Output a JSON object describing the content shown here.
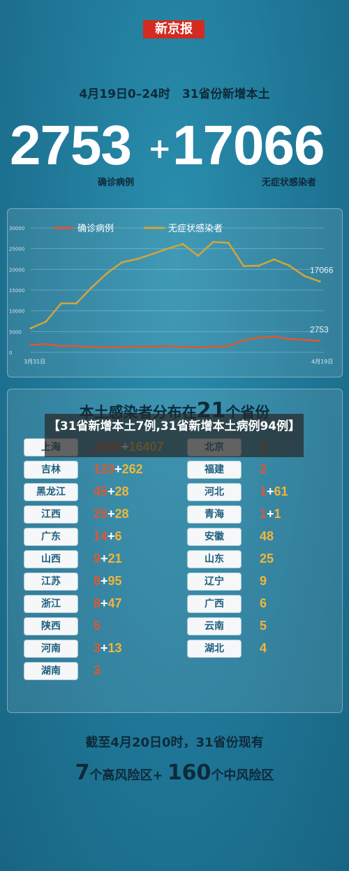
{
  "header": {
    "brand": "新京报",
    "date_line": "4月19日0–24时　31省份新增本土",
    "confirmed": "2753",
    "plus": "+",
    "asymptomatic": "17066",
    "confirmed_label": "确诊病例",
    "asymptomatic_label": "无症状感染者"
  },
  "chart_data": {
    "type": "line",
    "x_start_label": "3月31日",
    "x_end_label": "4月19日",
    "ylim": [
      0,
      30000
    ],
    "y_ticks": [
      "0",
      "5000",
      "10000",
      "15000",
      "20000",
      "25000",
      "30000"
    ],
    "grid": true,
    "legend_position": "top",
    "series": [
      {
        "name": "确诊病例",
        "color": "#e0572e",
        "values": [
          1800,
          2000,
          1500,
          1500,
          1300,
          1300,
          1300,
          1400,
          1400,
          1500,
          1300,
          1200,
          1400,
          1500,
          2900,
          3500,
          3800,
          3200,
          3000,
          2753
        ],
        "end_label": "2753"
      },
      {
        "name": "无症状感染者",
        "color": "#d4a43a",
        "values": [
          5800,
          7400,
          11800,
          11800,
          15600,
          19000,
          21700,
          22500,
          23700,
          25000,
          26100,
          23300,
          26600,
          26400,
          20800,
          20900,
          22400,
          20900,
          18400,
          17066
        ],
        "end_label": "17066"
      }
    ]
  },
  "distribution": {
    "title_prefix": "本土感染者分布在",
    "title_num": "21",
    "title_suffix": "个省份",
    "left": [
      {
        "name": "上海",
        "confirmed": "2494",
        "asym": "16407"
      },
      {
        "name": "吉林",
        "confirmed": "133",
        "asym": "262"
      },
      {
        "name": "黑龙江",
        "confirmed": "45",
        "asym": "28"
      },
      {
        "name": "江西",
        "confirmed": "25",
        "asym": "28"
      },
      {
        "name": "广东",
        "confirmed": "14",
        "asym": "6"
      },
      {
        "name": "山西",
        "confirmed": "9",
        "asym": "21"
      },
      {
        "name": "江苏",
        "confirmed": "8",
        "asym": "95"
      },
      {
        "name": "浙江",
        "confirmed": "8",
        "asym": "47"
      },
      {
        "name": "陕西",
        "confirmed": "5",
        "asym": ""
      },
      {
        "name": "河南",
        "confirmed": "3",
        "asym": "13"
      },
      {
        "name": "湖南",
        "confirmed": "3",
        "asym": ""
      }
    ],
    "right": [
      {
        "name": "北京",
        "confirmed": "2",
        "asym": ""
      },
      {
        "name": "福建",
        "confirmed": "2",
        "asym": ""
      },
      {
        "name": "河北",
        "confirmed": "1",
        "asym": "61"
      },
      {
        "name": "青海",
        "confirmed": "1",
        "asym": "1"
      },
      {
        "name": "安徽",
        "confirmed": "",
        "asym": "48"
      },
      {
        "name": "山东",
        "confirmed": "",
        "asym": "25"
      },
      {
        "name": "辽宁",
        "confirmed": "",
        "asym": "9"
      },
      {
        "name": "广西",
        "confirmed": "",
        "asym": "6"
      },
      {
        "name": "云南",
        "confirmed": "",
        "asym": "5"
      },
      {
        "name": "湖北",
        "confirmed": "",
        "asym": "4"
      }
    ]
  },
  "overlay_caption": "【31省新增本土7例,31省新增本土病例94例】",
  "footer": {
    "line1": "截至4月20日0时，31省份现有",
    "high_num": "7",
    "high_label": "个高风险区+",
    "mid_num": "160",
    "mid_label": "个中风险区"
  }
}
